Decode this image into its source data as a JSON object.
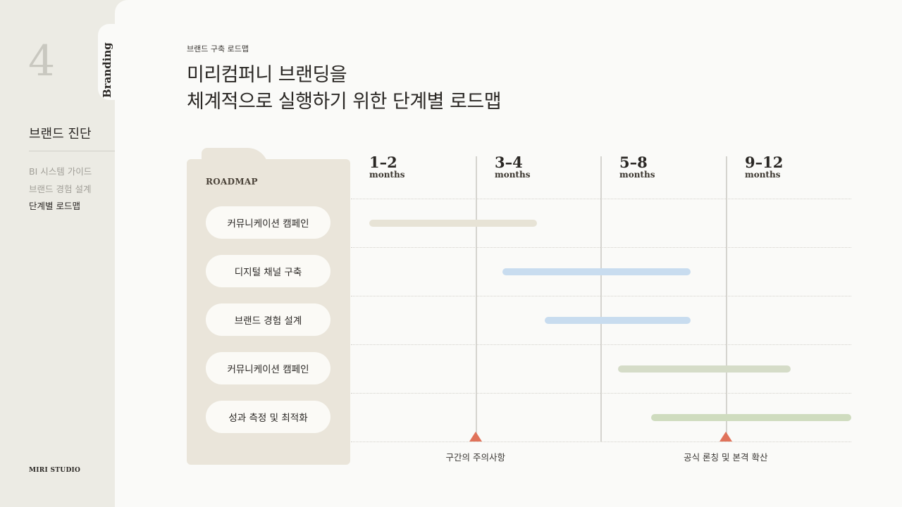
{
  "sidebar": {
    "chapter_number": "4",
    "tab_label": "Branding",
    "section_title": "브랜드 진단",
    "items": [
      {
        "label": "BI 시스템 가이드",
        "active": false
      },
      {
        "label": "브랜드 경험 설계",
        "active": false
      },
      {
        "label": "단계별 로드맵",
        "active": true
      }
    ],
    "footer": "MIRI STUDIO"
  },
  "header": {
    "kicker": "브랜드 구축 로드맵",
    "title_line1": "미리컴퍼니 브랜딩을",
    "title_line2": "체계적으로 실행하기 위한 단계별 로드맵"
  },
  "roadmap": {
    "panel_label": "ROADMAP",
    "columns": [
      {
        "range": "1–2",
        "unit": "months"
      },
      {
        "range": "3–4",
        "unit": "months"
      },
      {
        "range": "5–8",
        "unit": "months"
      },
      {
        "range": "9–12",
        "unit": "months"
      }
    ],
    "rows": [
      {
        "label": "커뮤니케이션 캠페인",
        "start": 0.037,
        "end": 0.372,
        "color": "#e7e3d6"
      },
      {
        "label": "디지털 채널 구축",
        "start": 0.303,
        "end": 0.679,
        "color": "#c8dcef"
      },
      {
        "label": "브랜드 경험 설계",
        "start": 0.387,
        "end": 0.679,
        "color": "#c8dcef"
      },
      {
        "label": "커뮤니케이션 캠페인",
        "start": 0.534,
        "end": 0.879,
        "color": "#d5dcc8"
      },
      {
        "label": "성과 측정 및 최적화",
        "start": 0.6,
        "end": 1.0,
        "color": "#cfdcbf"
      }
    ],
    "milestones": [
      {
        "label": "구간의 주의사항",
        "at": 0.249
      },
      {
        "label": "공식 론칭 및 본격 확산",
        "at": 0.749
      }
    ],
    "marker_color": "#e0725a"
  }
}
